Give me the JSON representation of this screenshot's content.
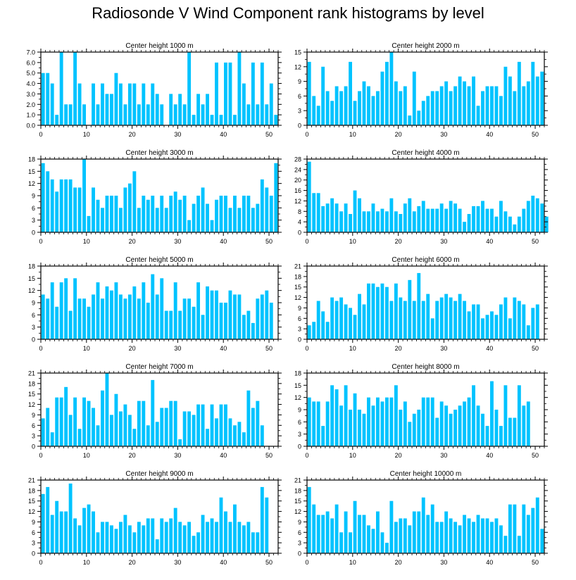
{
  "title": "Radiosonde V Wind Component rank histograms by level",
  "colors": {
    "bar": "#00C3FF",
    "bar_edge": "#ffffff",
    "axis": "#000000"
  },
  "chart_data": [
    {
      "type": "bar",
      "title": "Center height 1000 m",
      "xlim": [
        0,
        52
      ],
      "ylim": [
        0,
        7
      ],
      "yticks": [
        0,
        1,
        2,
        3,
        4,
        5,
        6,
        7
      ],
      "ytick_labels": [
        "0.0",
        "1.0",
        "2.0",
        "3.0",
        "4.0",
        "5.0",
        "6.0",
        "7.0"
      ],
      "xticks": [
        0,
        10,
        20,
        30,
        40,
        50
      ],
      "values": [
        5,
        5,
        4,
        1,
        7,
        2,
        2,
        7,
        4,
        2,
        0,
        4,
        2,
        4,
        3,
        3,
        5,
        4,
        2,
        4,
        4,
        2,
        4,
        2,
        4,
        3,
        2,
        0,
        3,
        2,
        3,
        2,
        7,
        1,
        3,
        2,
        3,
        1,
        6,
        1,
        6,
        6,
        1,
        7,
        4,
        2,
        6,
        2,
        6,
        2,
        4,
        1
      ]
    },
    {
      "type": "bar",
      "title": "Center height 2000 m",
      "xlim": [
        0,
        52
      ],
      "ylim": [
        0,
        15
      ],
      "yticks": [
        0,
        3,
        6,
        9,
        12,
        15
      ],
      "ytick_labels": [
        "0",
        "3",
        "6",
        "9",
        "12",
        "15"
      ],
      "xticks": [
        0,
        10,
        20,
        30,
        40,
        50
      ],
      "values": [
        13,
        6,
        4,
        12,
        7,
        5,
        8,
        7,
        8,
        13,
        5,
        7,
        9,
        8,
        6,
        7,
        11,
        13,
        15,
        9,
        7,
        8,
        2,
        11,
        3,
        5,
        6,
        7,
        7,
        8,
        9,
        7,
        8,
        10,
        9,
        8,
        10,
        4,
        7,
        8,
        8,
        8,
        6,
        12,
        10,
        7,
        13,
        8,
        9,
        13,
        10,
        11
      ]
    },
    {
      "type": "bar",
      "title": "Center height 3000 m",
      "xlim": [
        0,
        52
      ],
      "ylim": [
        0,
        18
      ],
      "yticks": [
        0,
        3,
        6,
        9,
        12,
        15,
        18
      ],
      "ytick_labels": [
        "0",
        "3",
        "6",
        "9",
        "12",
        "15",
        "18"
      ],
      "xticks": [
        0,
        10,
        20,
        30,
        40,
        50
      ],
      "values": [
        17,
        15,
        13,
        10,
        13,
        13,
        13,
        11,
        11,
        18,
        4,
        11,
        8,
        6,
        9,
        9,
        9,
        6,
        11,
        12,
        15,
        6,
        9,
        8,
        9,
        6,
        9,
        6,
        9,
        10,
        8,
        9,
        3,
        7,
        9,
        11,
        7,
        3,
        8,
        9,
        9,
        6,
        9,
        6,
        9,
        9,
        6,
        7,
        13,
        11,
        9,
        17
      ]
    },
    {
      "type": "bar",
      "title": "Center height 4000 m",
      "xlim": [
        0,
        52
      ],
      "ylim": [
        0,
        28
      ],
      "yticks": [
        0,
        4,
        8,
        12,
        16,
        20,
        24,
        28
      ],
      "ytick_labels": [
        "0",
        "4",
        "8",
        "12",
        "16",
        "20",
        "24",
        "28"
      ],
      "xticks": [
        0,
        10,
        20,
        30,
        40,
        50
      ],
      "values": [
        27,
        15,
        15,
        10,
        11,
        13,
        11,
        8,
        11,
        7,
        16,
        13,
        8,
        8,
        11,
        8,
        9,
        8,
        13,
        8,
        7,
        11,
        13,
        8,
        10,
        12,
        9,
        9,
        9,
        11,
        9,
        12,
        11,
        9,
        4,
        7,
        10,
        10,
        12,
        9,
        9,
        6,
        12,
        8,
        6,
        3,
        6,
        9,
        12,
        14,
        13,
        11,
        6
      ]
    },
    {
      "type": "bar",
      "title": "Center height 5000 m",
      "xlim": [
        0,
        52
      ],
      "ylim": [
        0,
        18
      ],
      "yticks": [
        0,
        3,
        6,
        9,
        12,
        15,
        18
      ],
      "ytick_labels": [
        "0",
        "3",
        "6",
        "9",
        "12",
        "15",
        "18"
      ],
      "xticks": [
        0,
        10,
        20,
        30,
        40,
        50
      ],
      "values": [
        11,
        10,
        14,
        8,
        14,
        15,
        7,
        15,
        10,
        10,
        8,
        11,
        14,
        10,
        13,
        12,
        14,
        11,
        10,
        11,
        13,
        10,
        14,
        9,
        16,
        11,
        15,
        7,
        7,
        14,
        7,
        10,
        10,
        8,
        14,
        6,
        13,
        12,
        12,
        9,
        9,
        12,
        11,
        11,
        6,
        7,
        4,
        10,
        11,
        12,
        9
      ]
    },
    {
      "type": "bar",
      "title": "Center height 6000 m",
      "xlim": [
        0,
        52
      ],
      "ylim": [
        0,
        21
      ],
      "yticks": [
        0,
        3,
        6,
        9,
        12,
        15,
        18,
        21
      ],
      "ytick_labels": [
        "0",
        "3",
        "6",
        "9",
        "12",
        "15",
        "18",
        "21"
      ],
      "xticks": [
        0,
        10,
        20,
        30,
        40,
        50
      ],
      "values": [
        4,
        5,
        11,
        8,
        5,
        12,
        11,
        12,
        10,
        9,
        7,
        13,
        10,
        16,
        16,
        15,
        16,
        15,
        11,
        16,
        12,
        11,
        17,
        11,
        19,
        11,
        13,
        6,
        11,
        12,
        13,
        12,
        11,
        13,
        11,
        8,
        10,
        10,
        6,
        7,
        8,
        7,
        10,
        12,
        6,
        12,
        11,
        10,
        4,
        9,
        10
      ]
    },
    {
      "type": "bar",
      "title": "Center height 7000 m",
      "xlim": [
        0,
        52
      ],
      "ylim": [
        0,
        21
      ],
      "yticks": [
        0,
        3,
        6,
        9,
        12,
        15,
        18,
        21
      ],
      "ytick_labels": [
        "0",
        "3",
        "6",
        "9",
        "12",
        "15",
        "18",
        "21"
      ],
      "xticks": [
        0,
        10,
        20,
        30,
        40,
        50
      ],
      "values": [
        8,
        11,
        4,
        14,
        14,
        17,
        9,
        14,
        5,
        14,
        13,
        11,
        6,
        16,
        21,
        9,
        15,
        10,
        12,
        9,
        5,
        13,
        13,
        6,
        19,
        7,
        11,
        11,
        13,
        13,
        2,
        10,
        10,
        9,
        12,
        12,
        5,
        12,
        8,
        12,
        12,
        8,
        6,
        7,
        4,
        16,
        11,
        13,
        6
      ]
    },
    {
      "type": "bar",
      "title": "Center height 8000 m",
      "xlim": [
        0,
        52
      ],
      "ylim": [
        0,
        18
      ],
      "yticks": [
        0,
        3,
        6,
        9,
        12,
        15,
        18
      ],
      "ytick_labels": [
        "0",
        "3",
        "6",
        "9",
        "12",
        "15",
        "18"
      ],
      "xticks": [
        0,
        10,
        20,
        30,
        40,
        50
      ],
      "values": [
        12,
        11,
        11,
        5,
        11,
        15,
        14,
        10,
        15,
        9,
        13,
        9,
        8,
        12,
        10,
        12,
        11,
        12,
        12,
        15,
        9,
        11,
        6,
        8,
        9,
        12,
        12,
        12,
        7,
        11,
        10,
        8,
        9,
        10,
        11,
        12,
        15,
        10,
        8,
        5,
        16,
        9,
        5,
        15,
        7,
        7,
        15,
        10,
        11
      ]
    },
    {
      "type": "bar",
      "title": "Center height 9000 m",
      "xlim": [
        0,
        52
      ],
      "ylim": [
        0,
        21
      ],
      "yticks": [
        0,
        3,
        6,
        9,
        12,
        15,
        18,
        21
      ],
      "ytick_labels": [
        "0",
        "3",
        "6",
        "9",
        "12",
        "15",
        "18",
        "21"
      ],
      "xticks": [
        0,
        10,
        20,
        30,
        40,
        50
      ],
      "values": [
        17,
        19,
        11,
        15,
        12,
        12,
        20,
        10,
        8,
        13,
        14,
        12,
        6,
        9,
        9,
        8,
        7,
        9,
        11,
        8,
        6,
        9,
        8,
        10,
        10,
        4,
        10,
        9,
        10,
        13,
        9,
        8,
        9,
        5,
        6,
        11,
        9,
        10,
        9,
        16,
        12,
        9,
        14,
        9,
        8,
        9,
        6,
        6,
        19,
        16
      ]
    },
    {
      "type": "bar",
      "title": "Center height 10000 m",
      "xlim": [
        0,
        52
      ],
      "ylim": [
        0,
        21
      ],
      "yticks": [
        0,
        3,
        6,
        9,
        12,
        15,
        18,
        21
      ],
      "ytick_labels": [
        "0",
        "3",
        "6",
        "9",
        "12",
        "15",
        "18",
        "21"
      ],
      "xticks": [
        0,
        10,
        20,
        30,
        40,
        50
      ],
      "values": [
        19,
        14,
        11,
        11,
        12,
        10,
        14,
        6,
        12,
        6,
        15,
        11,
        11,
        8,
        7,
        12,
        6,
        3,
        15,
        9,
        10,
        10,
        8,
        12,
        12,
        16,
        11,
        14,
        9,
        9,
        12,
        10,
        9,
        8,
        11,
        10,
        9,
        11,
        10,
        10,
        9,
        10,
        8,
        5,
        14,
        14,
        5,
        14,
        11,
        13,
        16,
        7
      ]
    }
  ]
}
